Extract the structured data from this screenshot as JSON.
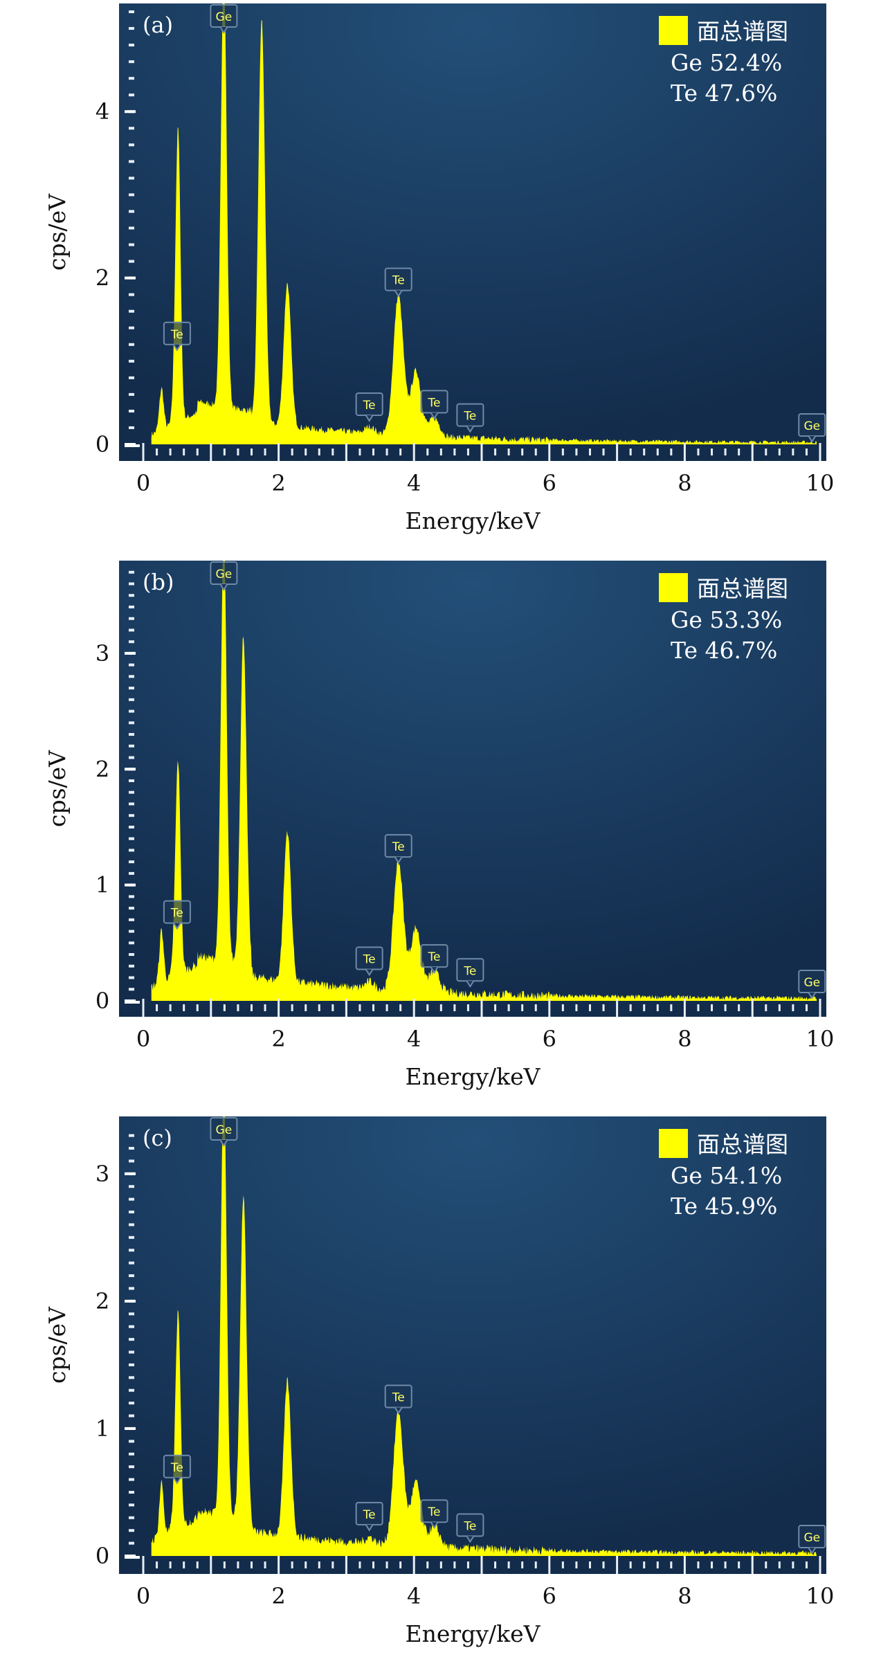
{
  "colors": {
    "spectrum": "#ffff00",
    "plot_bg_dark": "#132c4c",
    "plot_bg_light": "#21507a",
    "marker_border": "#6f8aa8"
  },
  "chart_data": [
    {
      "type": "area",
      "panel_label": "(a)",
      "xlabel": "Energy/keV",
      "ylabel": "cps/eV",
      "xlim": [
        0,
        10
      ],
      "ylim": [
        0,
        5.3
      ],
      "xticks": [
        "0",
        "2",
        "4",
        "6",
        "8",
        "10"
      ],
      "yticks": [
        {
          "value": 0,
          "label": "0"
        },
        {
          "value": 2,
          "label": "2"
        },
        {
          "value": 4,
          "label": "4"
        }
      ],
      "legend": {
        "label": "面总谱图",
        "placement": "top-right",
        "composition": [
          "Ge 52.4%",
          "Te 47.6%"
        ]
      },
      "background_level": 0.32,
      "peaks": [
        {
          "energy": 0.27,
          "height": 0.5
        },
        {
          "energy": 0.52,
          "height": 3.05
        },
        {
          "energy": 0.48,
          "height": 0.9
        },
        {
          "energy": 1.19,
          "height": 5.3
        },
        {
          "energy": 1.75,
          "height": 4.85
        },
        {
          "energy": 2.13,
          "height": 1.72
        },
        {
          "energy": 3.35,
          "height": 0.08
        },
        {
          "energy": 3.77,
          "height": 1.68
        },
        {
          "energy": 4.03,
          "height": 0.78
        },
        {
          "energy": 4.3,
          "height": 0.22
        }
      ],
      "markers": [
        {
          "element": "Te",
          "energy": 0.5,
          "height": 1.1
        },
        {
          "element": "Ge",
          "energy": 1.19,
          "height": 5.3
        },
        {
          "element": "Te",
          "energy": 3.34,
          "height": 0.25
        },
        {
          "element": "Te",
          "energy": 3.77,
          "height": 1.75
        },
        {
          "element": "Te",
          "energy": 4.3,
          "height": 0.28
        },
        {
          "element": "Te",
          "energy": 4.83,
          "height": 0.12
        },
        {
          "element": "Ge",
          "energy": 9.88,
          "height": 0.0
        }
      ]
    },
    {
      "type": "area",
      "panel_label": "(b)",
      "xlabel": "Energy/keV",
      "ylabel": "cps/eV",
      "xlim": [
        0,
        10
      ],
      "ylim": [
        0,
        3.8
      ],
      "xticks": [
        "0",
        "2",
        "4",
        "6",
        "8",
        "10"
      ],
      "yticks": [
        {
          "value": 0,
          "label": "0"
        },
        {
          "value": 1,
          "label": "1"
        },
        {
          "value": 2,
          "label": "2"
        },
        {
          "value": 3,
          "label": "3"
        }
      ],
      "legend": {
        "label": "面总谱图",
        "placement": "top-right",
        "composition": [
          "Ge 53.3%",
          "Te 46.7%"
        ]
      },
      "background_level": 0.24,
      "peaks": [
        {
          "energy": 0.27,
          "height": 0.45
        },
        {
          "energy": 0.52,
          "height": 1.57
        },
        {
          "energy": 0.48,
          "height": 0.5
        },
        {
          "energy": 1.19,
          "height": 3.7
        },
        {
          "energy": 1.48,
          "height": 2.85
        },
        {
          "energy": 2.13,
          "height": 1.3
        },
        {
          "energy": 3.35,
          "height": 0.06
        },
        {
          "energy": 3.77,
          "height": 1.12
        },
        {
          "energy": 4.03,
          "height": 0.55
        },
        {
          "energy": 4.3,
          "height": 0.18
        }
      ],
      "markers": [
        {
          "element": "Te",
          "energy": 0.5,
          "height": 0.6
        },
        {
          "element": "Ge",
          "energy": 1.19,
          "height": 3.8
        },
        {
          "element": "Te",
          "energy": 3.34,
          "height": 0.2
        },
        {
          "element": "Te",
          "energy": 3.77,
          "height": 1.17
        },
        {
          "element": "Te",
          "energy": 4.3,
          "height": 0.22
        },
        {
          "element": "Te",
          "energy": 4.83,
          "height": 0.1
        },
        {
          "element": "Ge",
          "energy": 9.88,
          "height": 0.0
        }
      ]
    },
    {
      "type": "area",
      "panel_label": "(c)",
      "xlabel": "Energy/keV",
      "ylabel": "cps/eV",
      "xlim": [
        0,
        10
      ],
      "ylim": [
        0,
        3.45
      ],
      "xticks": [
        "0",
        "2",
        "4",
        "6",
        "8",
        "10"
      ],
      "yticks": [
        {
          "value": 0,
          "label": "0"
        },
        {
          "value": 1,
          "label": "1"
        },
        {
          "value": 2,
          "label": "2"
        },
        {
          "value": 3,
          "label": "3"
        }
      ],
      "legend": {
        "label": "面总谱图",
        "placement": "top-right",
        "composition": [
          "Ge 54.1%",
          "Te 45.9%"
        ]
      },
      "background_level": 0.22,
      "peaks": [
        {
          "energy": 0.27,
          "height": 0.42
        },
        {
          "energy": 0.52,
          "height": 1.45
        },
        {
          "energy": 0.48,
          "height": 0.45
        },
        {
          "energy": 1.19,
          "height": 3.4
        },
        {
          "energy": 1.48,
          "height": 2.55
        },
        {
          "energy": 2.13,
          "height": 1.22
        },
        {
          "energy": 3.35,
          "height": 0.05
        },
        {
          "energy": 3.77,
          "height": 1.05
        },
        {
          "energy": 4.03,
          "height": 0.5
        },
        {
          "energy": 4.3,
          "height": 0.16
        }
      ],
      "markers": [
        {
          "element": "Te",
          "energy": 0.5,
          "height": 0.55
        },
        {
          "element": "Ge",
          "energy": 1.19,
          "height": 3.45
        },
        {
          "element": "Te",
          "energy": 3.34,
          "height": 0.18
        },
        {
          "element": "Te",
          "energy": 3.77,
          "height": 1.1
        },
        {
          "element": "Te",
          "energy": 4.3,
          "height": 0.2
        },
        {
          "element": "Te",
          "energy": 4.83,
          "height": 0.09
        },
        {
          "element": "Ge",
          "energy": 9.88,
          "height": 0.0
        }
      ]
    }
  ]
}
